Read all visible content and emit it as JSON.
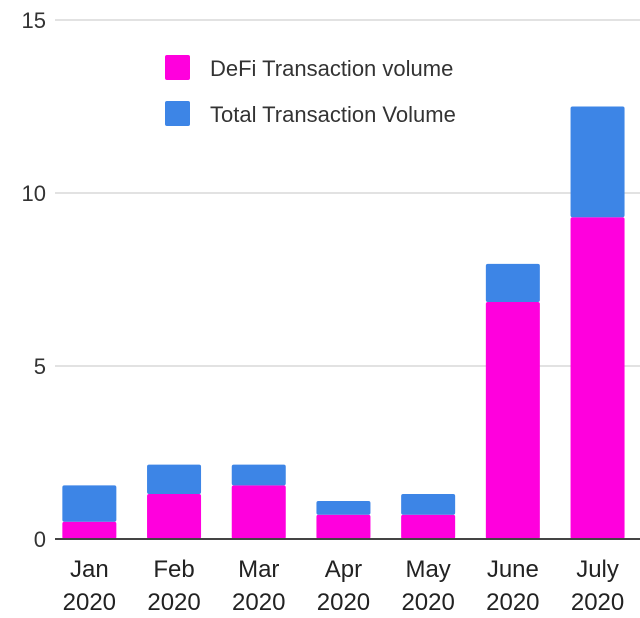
{
  "chart_data": {
    "type": "bar",
    "stacked": true,
    "categories": [
      [
        "Jan",
        "2020"
      ],
      [
        "Feb",
        "2020"
      ],
      [
        "Mar",
        "2020"
      ],
      [
        "Apr",
        "2020"
      ],
      [
        "May",
        "2020"
      ],
      [
        "June",
        "2020"
      ],
      [
        "July",
        "2020"
      ]
    ],
    "series": [
      {
        "name": "DeFi Transaction volume",
        "color": "#ff00dd",
        "values": [
          0.5,
          1.3,
          1.55,
          0.7,
          0.7,
          6.85,
          9.3
        ]
      },
      {
        "name": "Total Transaction Volume",
        "color": "#3d85e6",
        "values": [
          1.05,
          0.85,
          0.6,
          0.4,
          0.6,
          1.1,
          3.2
        ]
      }
    ],
    "ylim": [
      0,
      15
    ],
    "yticks": [
      0,
      5,
      10,
      15
    ],
    "ytick_labels": [
      "0",
      "5",
      "10",
      "15"
    ],
    "grid": true,
    "legend_position": "top-left",
    "title": "",
    "xlabel": "",
    "ylabel": ""
  }
}
